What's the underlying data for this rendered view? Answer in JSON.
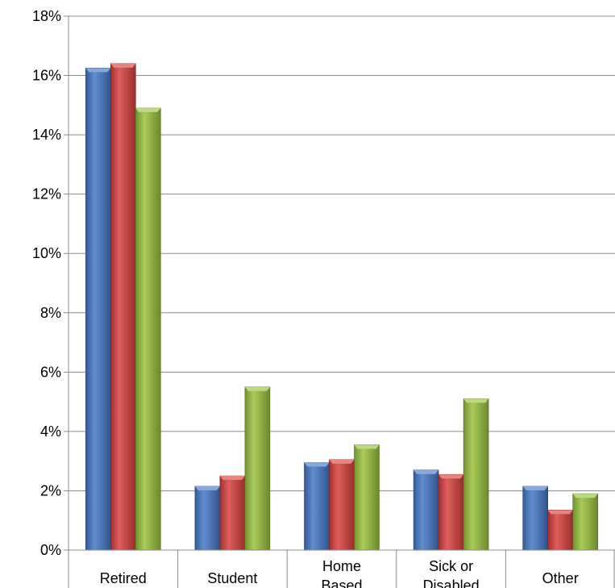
{
  "chart_data": {
    "type": "bar",
    "title": "",
    "xlabel": "",
    "ylabel": "",
    "categories": [
      [
        "Retired"
      ],
      [
        "Student"
      ],
      [
        "Home",
        "Based"
      ],
      [
        "Sick or",
        "Disabled"
      ],
      [
        "Other"
      ]
    ],
    "series": [
      {
        "color": "#4579c9",
        "values": [
          16.25,
          2.15,
          2.95,
          2.7,
          2.15
        ]
      },
      {
        "color": "#d9413f",
        "values": [
          16.4,
          2.5,
          3.05,
          2.55,
          1.35
        ]
      },
      {
        "color": "#9ac33e",
        "values": [
          14.9,
          5.5,
          3.55,
          5.1,
          1.9
        ]
      }
    ],
    "ylim": [
      0,
      18
    ],
    "yticks": [
      "0%",
      "2%",
      "4%",
      "6%",
      "8%",
      "10%",
      "12%",
      "14%",
      "16%",
      "18%"
    ],
    "grid": true,
    "legend": "none"
  }
}
